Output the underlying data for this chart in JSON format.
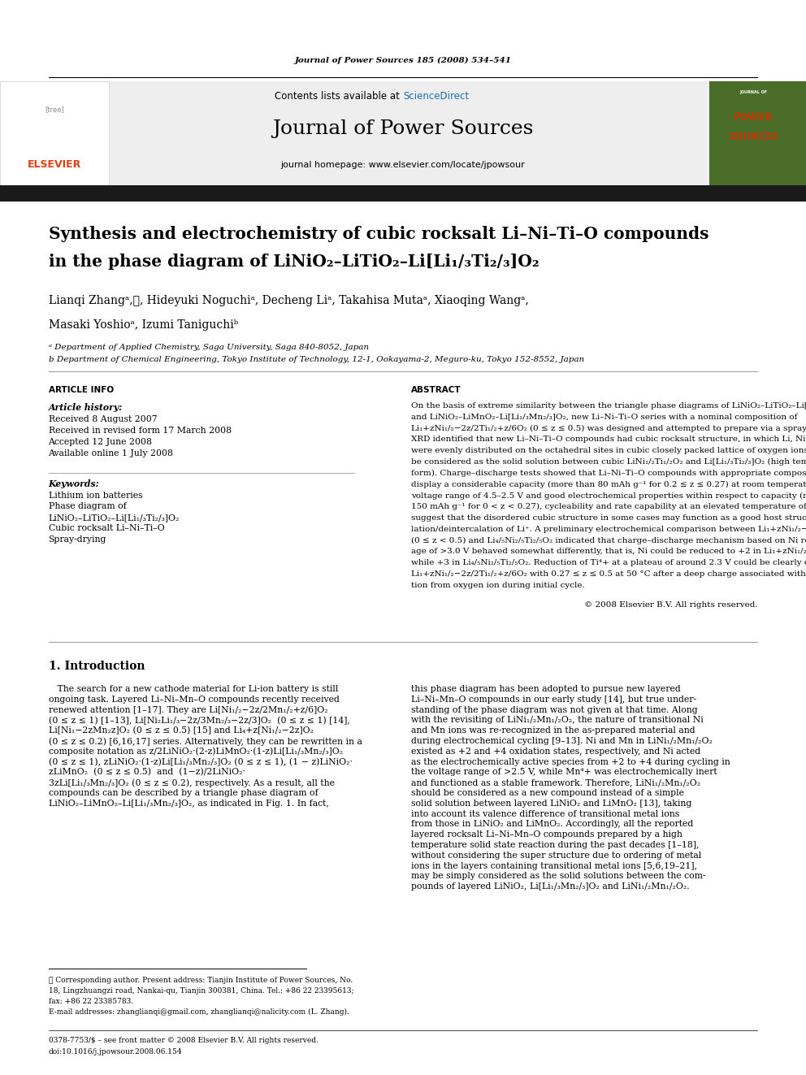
{
  "page_width": 9.92,
  "page_height": 13.23,
  "background": "#ffffff",
  "journal_citation": "Journal of Power Sources 185 (2008) 534–541",
  "sciencedirect_color": "#1a6eb5",
  "journal_name": "Journal of Power Sources",
  "homepage_text": "journal homepage: www.elsevier.com/locate/jpowsour",
  "title_line1": "Synthesis and electrochemistry of cubic rocksalt Li–Ni–Ti–O compounds",
  "title_line2": "in the phase diagram of LiNiO₂–LiTiO₂–Li[Li₁/₃Ti₂/₃]O₂",
  "affil_a": "ᵃ Department of Applied Chemistry, Saga University, Saga 840-8052, Japan",
  "affil_b": "b Department of Chemical Engineering, Tokyo Institute of Technology, 12-1, Ookayama-2, Meguro-ku, Tokyo 152-8552, Japan",
  "article_info_title": "ARTICLE INFO",
  "article_history_title": "Article history:",
  "received": "Received 8 August 2007",
  "revised": "Received in revised form 17 March 2008",
  "accepted": "Accepted 12 June 2008",
  "available": "Available online 1 July 2008",
  "keywords_title": "Keywords:",
  "kw1": "Lithium ion batteries",
  "kw2": "Phase diagram of",
  "kw3": "LiNiO₂–LiTiO₂–Li[Li₁/₃Ti₂/₃]O₂",
  "kw4": "Cubic rocksalt Li–Ni–Ti–O",
  "kw5": "Spray-drying",
  "abstract_title": "ABSTRACT",
  "copyright": "© 2008 Elsevier B.V. All rights reserved.",
  "intro_title": "1. Introduction",
  "footer_issn": "0378-7753/$ – see front matter © 2008 Elsevier B.V. All rights reserved.",
  "footer_doi": "doi:10.1016/j.jpowsour.2008.06.154"
}
